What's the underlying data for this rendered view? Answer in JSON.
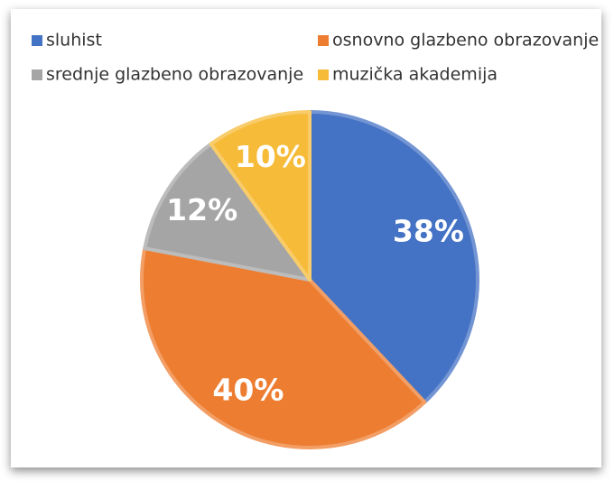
{
  "chart_data": {
    "type": "pie",
    "categories": [
      "sluhist",
      "osnovno glazbeno obrazovanje",
      "srednje glazbeno obrazovanje",
      "muzička akademija"
    ],
    "values": [
      38,
      40,
      12,
      10
    ],
    "value_labels": [
      "38%",
      "40%",
      "12%",
      "10%"
    ],
    "colors": [
      "#4472c4",
      "#ed7d31",
      "#a5a5a5",
      "#f6bb38"
    ],
    "legend": "top"
  }
}
